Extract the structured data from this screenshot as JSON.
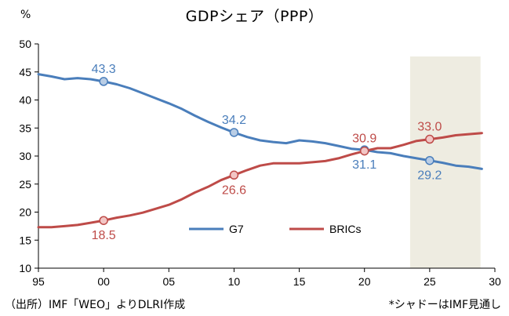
{
  "chart_data": {
    "type": "line",
    "title": "GDPシェア（PPP）",
    "ylabel": "%",
    "xlabel": "",
    "source_note": "（出所）IMF「WEO」よりDLRI作成",
    "shade_note": "*シャドーはIMF見通し",
    "xlim": [
      1995,
      2030
    ],
    "ylim": [
      10,
      50
    ],
    "x_ticks": [
      1995,
      2000,
      2005,
      2010,
      2015,
      2020,
      2025,
      2030
    ],
    "x_tick_labels": [
      "95",
      "00",
      "05",
      "10",
      "15",
      "20",
      "25",
      "30"
    ],
    "y_ticks": [
      10,
      15,
      20,
      25,
      30,
      35,
      40,
      45,
      50
    ],
    "y_tick_labels": [
      "10",
      "15",
      "20",
      "25",
      "30",
      "35",
      "40",
      "45",
      "50"
    ],
    "forecast_shade": [
      2023.5,
      2028.9
    ],
    "colors": {
      "G7": "#4a7ebb",
      "BRICs": "#be4b48",
      "marker_G7": "#b9cde5",
      "marker_BRICs": "#f2c6c5",
      "shade": "#eeece1",
      "axis": "#000000"
    },
    "legend": [
      "G7",
      "BRICs"
    ],
    "series": [
      {
        "name": "G7",
        "x": [
          1995,
          1996,
          1997,
          1998,
          1999,
          2000,
          2001,
          2002,
          2003,
          2004,
          2005,
          2006,
          2007,
          2008,
          2009,
          2010,
          2011,
          2012,
          2013,
          2014,
          2015,
          2016,
          2017,
          2018,
          2019,
          2020,
          2021,
          2022,
          2023,
          2024,
          2025,
          2026,
          2027,
          2028,
          2029
        ],
        "y": [
          44.6,
          44.2,
          43.7,
          43.9,
          43.7,
          43.3,
          42.8,
          42.1,
          41.2,
          40.3,
          39.4,
          38.4,
          37.2,
          36.1,
          35.1,
          34.2,
          33.4,
          32.8,
          32.5,
          32.3,
          32.8,
          32.6,
          32.3,
          31.8,
          31.3,
          31.1,
          30.7,
          30.5,
          30.0,
          29.6,
          29.2,
          28.8,
          28.3,
          28.1,
          27.7
        ]
      },
      {
        "name": "BRICs",
        "x": [
          1995,
          1996,
          1997,
          1998,
          1999,
          2000,
          2001,
          2002,
          2003,
          2004,
          2005,
          2006,
          2007,
          2008,
          2009,
          2010,
          2011,
          2012,
          2013,
          2014,
          2015,
          2016,
          2017,
          2018,
          2019,
          2020,
          2021,
          2022,
          2023,
          2024,
          2025,
          2026,
          2027,
          2028,
          2029
        ],
        "y": [
          17.3,
          17.3,
          17.5,
          17.7,
          18.1,
          18.5,
          19.0,
          19.4,
          19.9,
          20.6,
          21.3,
          22.3,
          23.5,
          24.5,
          25.7,
          26.6,
          27.5,
          28.3,
          28.7,
          28.7,
          28.7,
          28.9,
          29.1,
          29.6,
          30.3,
          30.9,
          31.4,
          31.4,
          32.0,
          32.7,
          33.0,
          33.3,
          33.7,
          33.9,
          34.1
        ]
      }
    ],
    "annotations": [
      {
        "series": "G7",
        "x": 2000,
        "y": 43.3,
        "label": "43.3",
        "position": "above"
      },
      {
        "series": "G7",
        "x": 2010,
        "y": 34.2,
        "label": "34.2",
        "position": "above"
      },
      {
        "series": "G7",
        "x": 2020,
        "y": 31.1,
        "label": "31.1",
        "position": "below"
      },
      {
        "series": "G7",
        "x": 2025,
        "y": 29.2,
        "label": "29.2",
        "position": "below"
      },
      {
        "series": "BRICs",
        "x": 2000,
        "y": 18.5,
        "label": "18.5",
        "position": "below"
      },
      {
        "series": "BRICs",
        "x": 2010,
        "y": 26.6,
        "label": "26.6",
        "position": "below"
      },
      {
        "series": "BRICs",
        "x": 2020,
        "y": 30.9,
        "label": "30.9",
        "position": "above"
      },
      {
        "series": "BRICs",
        "x": 2025,
        "y": 33.0,
        "label": "33.0",
        "position": "above"
      }
    ]
  }
}
